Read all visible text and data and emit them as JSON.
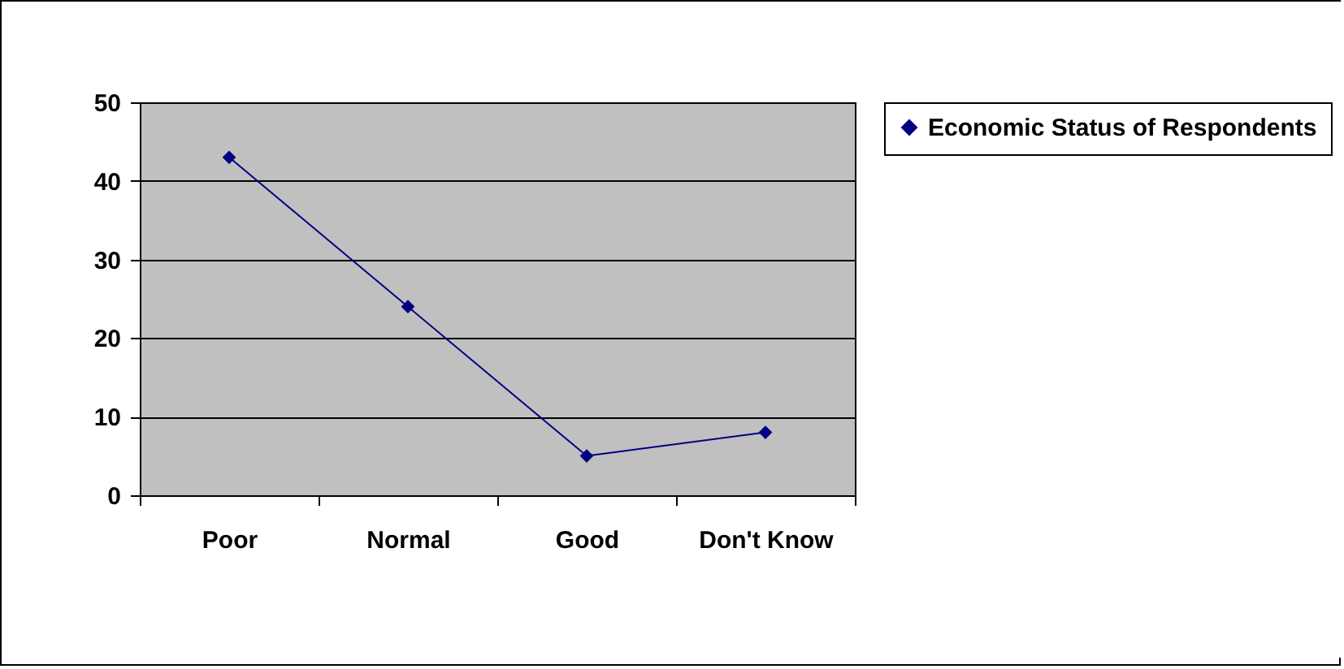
{
  "chart_data": {
    "type": "line",
    "categories": [
      "Poor",
      "Normal",
      "Good",
      "Don't Know"
    ],
    "series": [
      {
        "name": "Economic Status of Respondents",
        "color": "#000080",
        "values": [
          43,
          24,
          5,
          8
        ]
      }
    ],
    "ylim": [
      0,
      50
    ],
    "yticks": [
      0,
      10,
      20,
      30,
      40,
      50
    ],
    "grid": "y",
    "legend": "right",
    "marker": "diamond",
    "line_style": "solid"
  }
}
